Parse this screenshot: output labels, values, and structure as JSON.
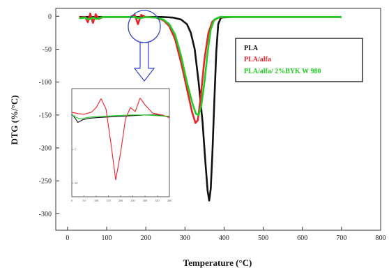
{
  "chart_data": {
    "type": "line",
    "xlabel": "Temperature (°C)",
    "ylabel": "DTG (%/°C)",
    "xlim": [
      -30,
      800
    ],
    "ylim": [
      -325,
      12
    ],
    "x_ticks": [
      0,
      100,
      200,
      300,
      400,
      500,
      600,
      700,
      800
    ],
    "y_ticks": [
      0,
      -50,
      -100,
      -150,
      -200,
      -250,
      -300
    ],
    "grid": false,
    "legend_position": "top-right",
    "series": [
      {
        "name": "PLA",
        "color": "#111111",
        "points": [
          [
            30,
            -1
          ],
          [
            60,
            -1
          ],
          [
            100,
            -1
          ],
          [
            150,
            -1
          ],
          [
            200,
            -1
          ],
          [
            240,
            -1
          ],
          [
            270,
            -2
          ],
          [
            290,
            -5
          ],
          [
            305,
            -12
          ],
          [
            315,
            -25
          ],
          [
            325,
            -50
          ],
          [
            335,
            -100
          ],
          [
            345,
            -160
          ],
          [
            352,
            -220
          ],
          [
            358,
            -265
          ],
          [
            362,
            -280
          ],
          [
            366,
            -262
          ],
          [
            370,
            -210
          ],
          [
            375,
            -130
          ],
          [
            380,
            -55
          ],
          [
            385,
            -12
          ],
          [
            392,
            -2
          ],
          [
            420,
            -1
          ],
          [
            500,
            -1
          ],
          [
            600,
            -1
          ],
          [
            700,
            -1
          ]
        ]
      },
      {
        "name": "PLA/alfa",
        "color": "#e8232a",
        "points": [
          [
            30,
            -2
          ],
          [
            45,
            -1
          ],
          [
            52,
            -9
          ],
          [
            58,
            4
          ],
          [
            65,
            -10
          ],
          [
            72,
            3
          ],
          [
            80,
            -4
          ],
          [
            90,
            -1
          ],
          [
            120,
            -1
          ],
          [
            160,
            -1
          ],
          [
            172,
            2
          ],
          [
            180,
            -12
          ],
          [
            188,
            2
          ],
          [
            200,
            -1
          ],
          [
            225,
            -2
          ],
          [
            245,
            -6
          ],
          [
            260,
            -15
          ],
          [
            275,
            -35
          ],
          [
            290,
            -70
          ],
          [
            305,
            -110
          ],
          [
            318,
            -145
          ],
          [
            327,
            -162
          ],
          [
            333,
            -158
          ],
          [
            340,
            -125
          ],
          [
            350,
            -65
          ],
          [
            360,
            -25
          ],
          [
            370,
            -8
          ],
          [
            385,
            -2
          ],
          [
            400,
            -1
          ],
          [
            500,
            -1
          ],
          [
            600,
            -1
          ],
          [
            700,
            -1
          ]
        ]
      },
      {
        "name": "PLA/alfa/ 2%BYK W 980",
        "color": "#22cc22",
        "points": [
          [
            30,
            -3
          ],
          [
            45,
            -2
          ],
          [
            55,
            -5
          ],
          [
            65,
            -2
          ],
          [
            75,
            -4
          ],
          [
            90,
            -1
          ],
          [
            120,
            -1
          ],
          [
            170,
            -1
          ],
          [
            185,
            -3
          ],
          [
            200,
            -1
          ],
          [
            225,
            -2
          ],
          [
            245,
            -5
          ],
          [
            260,
            -12
          ],
          [
            275,
            -28
          ],
          [
            290,
            -60
          ],
          [
            305,
            -100
          ],
          [
            318,
            -130
          ],
          [
            328,
            -148
          ],
          [
            335,
            -150
          ],
          [
            342,
            -135
          ],
          [
            350,
            -100
          ],
          [
            358,
            -55
          ],
          [
            366,
            -20
          ],
          [
            375,
            -5
          ],
          [
            390,
            -1
          ],
          [
            500,
            -1
          ],
          [
            600,
            -1
          ],
          [
            700,
            -1
          ]
        ]
      }
    ]
  },
  "inset": {
    "x_ticks": [
      "0",
      "50",
      "100",
      "150",
      "200",
      "250",
      "300",
      "350",
      "400"
    ],
    "y_ticks": [
      "0",
      "-5",
      "-10"
    ],
    "series": [
      {
        "color": "#111111",
        "points": [
          [
            0,
            0.2
          ],
          [
            12,
            -0.3
          ],
          [
            25,
            -1.0
          ],
          [
            45,
            -0.6
          ],
          [
            70,
            -0.4
          ],
          [
            100,
            -0.3
          ],
          [
            150,
            -0.2
          ],
          [
            200,
            -0.1
          ],
          [
            250,
            0.0
          ],
          [
            300,
            0.1
          ],
          [
            350,
            0.1
          ],
          [
            400,
            -0.2
          ]
        ]
      },
      {
        "color": "#e8232a",
        "points": [
          [
            0,
            0.5
          ],
          [
            25,
            0.3
          ],
          [
            50,
            0.2
          ],
          [
            80,
            0.5
          ],
          [
            100,
            1.2
          ],
          [
            120,
            2.5
          ],
          [
            140,
            1.0
          ],
          [
            160,
            -4.0
          ],
          [
            180,
            -9.5
          ],
          [
            200,
            -5.5
          ],
          [
            220,
            -0.5
          ],
          [
            240,
            1.2
          ],
          [
            260,
            0.6
          ],
          [
            280,
            2.6
          ],
          [
            300,
            1.6
          ],
          [
            330,
            0.4
          ],
          [
            370,
            0.1
          ],
          [
            400,
            -0.3
          ]
        ]
      },
      {
        "color": "#22cc22",
        "points": [
          [
            0,
            0.1
          ],
          [
            20,
            -0.3
          ],
          [
            40,
            -0.5
          ],
          [
            60,
            -0.3
          ],
          [
            80,
            -0.2
          ],
          [
            120,
            -0.1
          ],
          [
            180,
            0.0
          ],
          [
            240,
            0.1
          ],
          [
            300,
            0.1
          ],
          [
            350,
            0.0
          ],
          [
            400,
            -0.1
          ]
        ]
      }
    ]
  }
}
